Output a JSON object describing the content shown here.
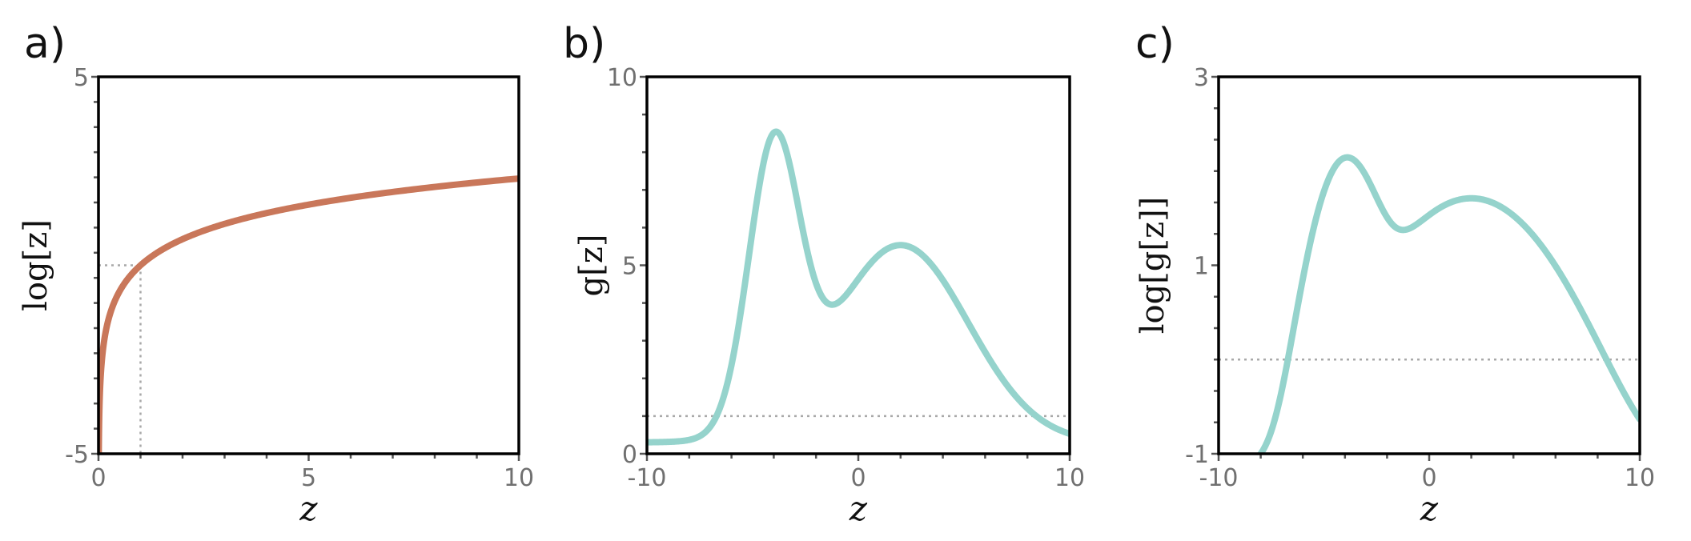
{
  "chart_data": [
    {
      "type": "line",
      "panel_label": "a)",
      "xlabel": "z",
      "ylabel": "log[z]",
      "xlim": [
        0,
        10
      ],
      "ylim": [
        -5,
        5
      ],
      "x_ticks": [
        "0",
        "5",
        "10"
      ],
      "y_ticks": [
        "-5",
        "5"
      ],
      "grid": false,
      "color": "#c9775a",
      "function": "log",
      "series": [
        {
          "x": [
            0.007,
            0.01,
            0.02,
            0.04,
            0.08,
            0.15,
            0.3,
            0.5,
            0.75,
            1,
            1.5,
            2,
            3,
            4,
            5,
            6,
            7,
            8,
            9,
            10
          ],
          "values": [
            -4.96,
            -4.61,
            -3.91,
            -3.22,
            -2.53,
            -1.9,
            -1.2,
            -0.69,
            -0.29,
            0,
            0.41,
            0.69,
            1.1,
            1.39,
            1.61,
            1.79,
            1.95,
            2.08,
            2.2,
            2.3
          ]
        }
      ],
      "guides": {
        "x": 1,
        "y": 0
      }
    },
    {
      "type": "line",
      "panel_label": "b)",
      "xlabel": "z",
      "ylabel": "g[z]",
      "xlim": [
        -10,
        10
      ],
      "ylim": [
        0,
        10
      ],
      "x_ticks": [
        "-10",
        "0",
        "10"
      ],
      "y_ticks": [
        "0",
        "5",
        "10"
      ],
      "grid": false,
      "color": "#95d3cc",
      "function": "mixture",
      "series": [
        {
          "x": [
            -10,
            -9,
            -8,
            -7,
            -6,
            -5,
            -4.5,
            -4,
            -3.5,
            -3,
            -2.5,
            -2,
            -1.5,
            -1,
            0,
            1,
            1.8,
            2.5,
            3,
            4,
            5,
            6,
            7,
            8,
            9,
            10
          ],
          "values": [
            0.37,
            0.61,
            0.92,
            1.36,
            2.5,
            5.3,
            6.96,
            7.3,
            6.54,
            5.21,
            4.16,
            3.78,
            3.86,
            4.16,
            4.81,
            5.3,
            5.45,
            5.3,
            5.07,
            4.3,
            3.34,
            2.4,
            1.62,
            1.04,
            0.65,
            0.4
          ]
        }
      ],
      "guides": {
        "y": 1
      }
    },
    {
      "type": "line",
      "panel_label": "c)",
      "xlabel": "z",
      "ylabel": "log[g[z]]",
      "xlim": [
        -10,
        10
      ],
      "ylim": [
        -1,
        3
      ],
      "x_ticks": [
        "-10",
        "0",
        "10"
      ],
      "y_ticks": [
        "-1",
        "1",
        "3"
      ],
      "grid": false,
      "color": "#95d3cc",
      "function": "log-mixture",
      "series": [
        {
          "x": [
            -10,
            -9,
            -8,
            -7,
            -6,
            -5,
            -4.5,
            -4,
            -3.5,
            -3,
            -2.5,
            -2,
            -1.5,
            -1,
            0,
            1,
            1.8,
            2.5,
            3,
            4,
            5,
            6,
            7,
            8,
            9,
            10
          ],
          "values": [
            -0.99,
            -0.49,
            -0.08,
            0.31,
            0.92,
            1.67,
            1.94,
            1.99,
            1.88,
            1.65,
            1.43,
            1.33,
            1.35,
            1.43,
            1.57,
            1.67,
            1.7,
            1.67,
            1.62,
            1.46,
            1.21,
            0.88,
            0.48,
            0.04,
            -0.43,
            -0.92
          ]
        }
      ],
      "guides": {
        "y": 0
      }
    }
  ]
}
